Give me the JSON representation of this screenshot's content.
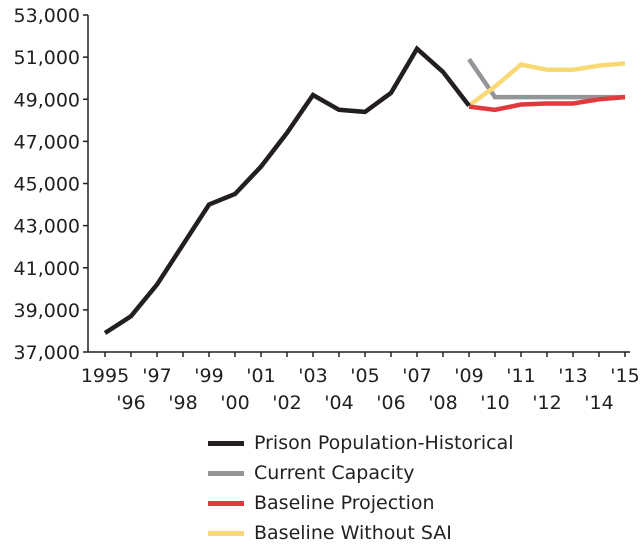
{
  "chart_data": {
    "type": "line",
    "title": "",
    "xlabel": "",
    "ylabel": "",
    "ylim": [
      37000,
      53000
    ],
    "xlim": [
      1995,
      2015
    ],
    "y_ticks": [
      37000,
      39000,
      41000,
      43000,
      45000,
      47000,
      49000,
      51000,
      53000
    ],
    "y_tick_labels": [
      "37,000",
      "39,000",
      "41,000",
      "43,000",
      "45,000",
      "47,000",
      "49,000",
      "51,000",
      "53,000"
    ],
    "x_ticks": [
      1995,
      1996,
      1997,
      1998,
      1999,
      2000,
      2001,
      2002,
      2003,
      2004,
      2005,
      2006,
      2007,
      2008,
      2009,
      2010,
      2011,
      2012,
      2013,
      2014,
      2015
    ],
    "x_tick_labels": [
      "1995",
      "'96",
      "'97",
      "'98",
      "'99",
      "'00",
      "'01",
      "'02",
      "'03",
      "'04",
      "'05",
      "'06",
      "'07",
      "'08",
      "'09",
      "'10",
      "'11",
      "'12",
      "'13",
      "'14",
      "'15"
    ],
    "grid": false,
    "legend_position": "bottom",
    "series": [
      {
        "name": "Prison Population-Historical",
        "color": "#231f20",
        "x": [
          1995,
          1996,
          1997,
          1998,
          1999,
          2000,
          2001,
          2002,
          2003,
          2004,
          2005,
          2006,
          2007,
          2008,
          2009
        ],
        "values": [
          37900,
          38700,
          40200,
          42100,
          44000,
          44500,
          45800,
          47400,
          49200,
          48500,
          48400,
          49300,
          51400,
          50300,
          48700
        ]
      },
      {
        "name": "Current Capacity",
        "color": "#939598",
        "x": [
          2009,
          2010,
          2011,
          2012,
          2013,
          2014,
          2015
        ],
        "values": [
          50900,
          49100,
          49100,
          49100,
          49100,
          49100,
          49100
        ]
      },
      {
        "name": "Baseline Projection",
        "color": "#e03a3e",
        "x": [
          2009,
          2010,
          2011,
          2012,
          2013,
          2014,
          2015
        ],
        "values": [
          48650,
          48500,
          48750,
          48800,
          48800,
          49000,
          49100
        ]
      },
      {
        "name": "Baseline Without SAI",
        "color": "#f9d976",
        "x": [
          2009,
          2010,
          2011,
          2012,
          2013,
          2014,
          2015
        ],
        "values": [
          48700,
          49600,
          50650,
          50400,
          50400,
          50600,
          50700
        ]
      }
    ]
  }
}
